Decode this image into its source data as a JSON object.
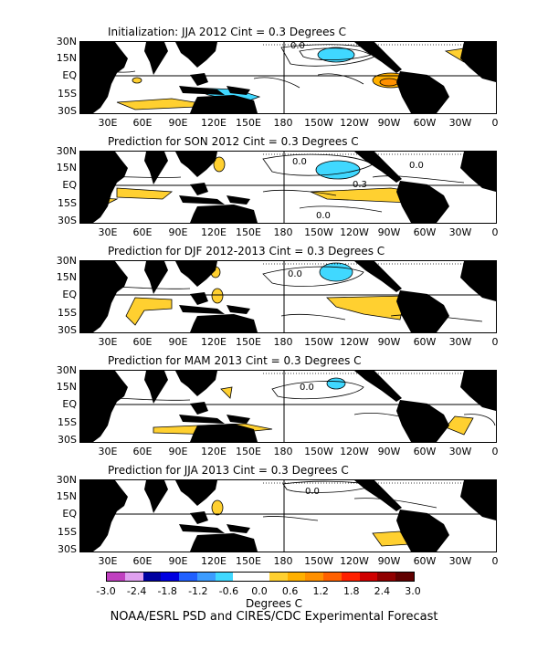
{
  "panels": [
    {
      "title": "Initialization: JJA 2012  Cint = 0.3 Degrees C"
    },
    {
      "title": "Prediction for SON 2012  Cint = 0.3 Degrees C"
    },
    {
      "title": "Prediction for DJF 2012-2013  Cint = 0.3 Degrees C"
    },
    {
      "title": "Prediction for MAM 2013  Cint = 0.3 Degrees C"
    },
    {
      "title": "Prediction for JJA 2013  Cint = 0.3 Degrees C"
    }
  ],
  "lat_labels": [
    "30N",
    "15N",
    "EQ",
    "15S",
    "30S"
  ],
  "lon_labels": [
    "30E",
    "60E",
    "90E",
    "120E",
    "150E",
    "180",
    "150W",
    "120W",
    "90W",
    "60W",
    "30W",
    "0"
  ],
  "contour_labels": {
    "p0": "0.0",
    "p1a": "0.0",
    "p1b": "0.3",
    "p1c": "0.0",
    "p1d": "0.0",
    "p2": "0.0",
    "p3": "0.0",
    "p4": "0.0"
  },
  "colorbar": {
    "labels": [
      "-3.0",
      "-2.4",
      "-1.8",
      "-1.2",
      "-0.6",
      "0.0",
      "0.6",
      "1.2",
      "1.8",
      "2.4",
      "3.0"
    ],
    "colors": [
      "#c040c0",
      "#e0a0f0",
      "#0000a0",
      "#0000e0",
      "#2060ff",
      "#3c9cff",
      "#40d8ff",
      "#ffffff",
      "#ffffff",
      "#ffd030",
      "#ffb000",
      "#ff9000",
      "#ff6000",
      "#ff2000",
      "#d00000",
      "#900000",
      "#600000"
    ],
    "units": "Degrees C"
  },
  "credit": "NOAA/ESRL PSD and CIRES/CDC Experimental Forecast"
}
